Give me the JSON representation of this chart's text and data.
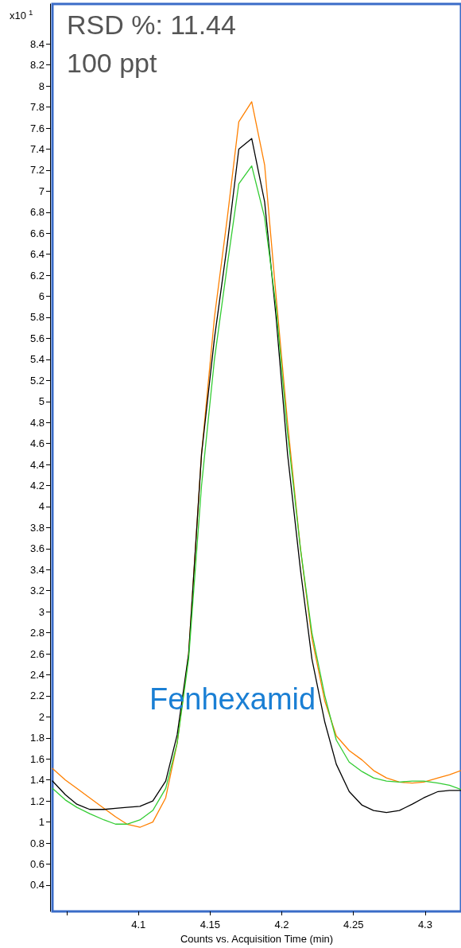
{
  "chart_data": {
    "type": "line",
    "xlabel": "Counts vs. Acquisition Time (min)",
    "annotations": [
      "x10$^{1}$",
      "RSD %: 11.44",
      "100 ppt",
      "Fenhexamid"
    ],
    "x": [
      4.04,
      4.049,
      4.057,
      4.066,
      4.076,
      4.084,
      4.092,
      4.101,
      4.11,
      4.119,
      4.127,
      4.135,
      4.144,
      4.153,
      4.162,
      4.17,
      4.179,
      4.188,
      4.196,
      4.204,
      4.213,
      4.221,
      4.23,
      4.238,
      4.247,
      4.256,
      4.264,
      4.273,
      4.282,
      4.291,
      4.299,
      4.309,
      4.317,
      4.325
    ],
    "series": [
      {
        "color": "#ff8000",
        "values": [
          1.51,
          1.4,
          1.32,
          1.23,
          1.13,
          1.05,
          0.98,
          0.95,
          1.0,
          1.23,
          1.75,
          2.6,
          4.5,
          5.8,
          6.75,
          7.66,
          7.85,
          7.25,
          6.0,
          4.8,
          3.6,
          2.75,
          2.15,
          1.82,
          1.68,
          1.59,
          1.49,
          1.42,
          1.38,
          1.37,
          1.38,
          1.42,
          1.45,
          1.49
        ]
      },
      {
        "color": "#000000",
        "values": [
          1.39,
          1.26,
          1.17,
          1.12,
          1.12,
          1.13,
          1.14,
          1.15,
          1.2,
          1.39,
          1.83,
          2.6,
          4.5,
          5.6,
          6.5,
          7.4,
          7.5,
          6.9,
          5.8,
          4.5,
          3.4,
          2.55,
          1.95,
          1.55,
          1.29,
          1.16,
          1.11,
          1.09,
          1.11,
          1.17,
          1.23,
          1.29,
          1.3,
          1.3
        ]
      },
      {
        "color": "#33cc33",
        "values": [
          1.32,
          1.21,
          1.14,
          1.08,
          1.02,
          0.98,
          0.98,
          1.02,
          1.11,
          1.32,
          1.75,
          2.55,
          4.2,
          5.4,
          6.3,
          7.07,
          7.24,
          6.75,
          5.9,
          4.7,
          3.6,
          2.8,
          2.2,
          1.78,
          1.57,
          1.48,
          1.42,
          1.39,
          1.38,
          1.39,
          1.39,
          1.37,
          1.35,
          1.31
        ]
      }
    ],
    "xlim": [
      4.04,
      4.325
    ],
    "xticks": [
      {
        "value": 4.05,
        "label": null
      },
      4.1,
      4.15,
      4.2,
      4.25,
      4.3
    ],
    "ylim": [
      0.15,
      8.78
    ],
    "yticks": [
      0.4,
      0.6,
      0.8,
      1,
      1.2,
      1.4,
      1.6,
      1.8,
      2,
      2.2,
      2.4,
      2.6,
      2.8,
      3,
      3.2,
      3.4,
      3.6,
      3.8,
      4,
      4.2,
      4.4,
      4.6,
      4.8,
      5,
      5.2,
      5.4,
      5.6,
      5.8,
      6,
      6.2,
      6.4,
      6.6,
      6.8,
      7,
      7.2,
      7.4,
      7.6,
      7.8,
      8,
      8.2,
      8.4
    ],
    "grid": false,
    "marker": "none",
    "line_style": "solid"
  }
}
